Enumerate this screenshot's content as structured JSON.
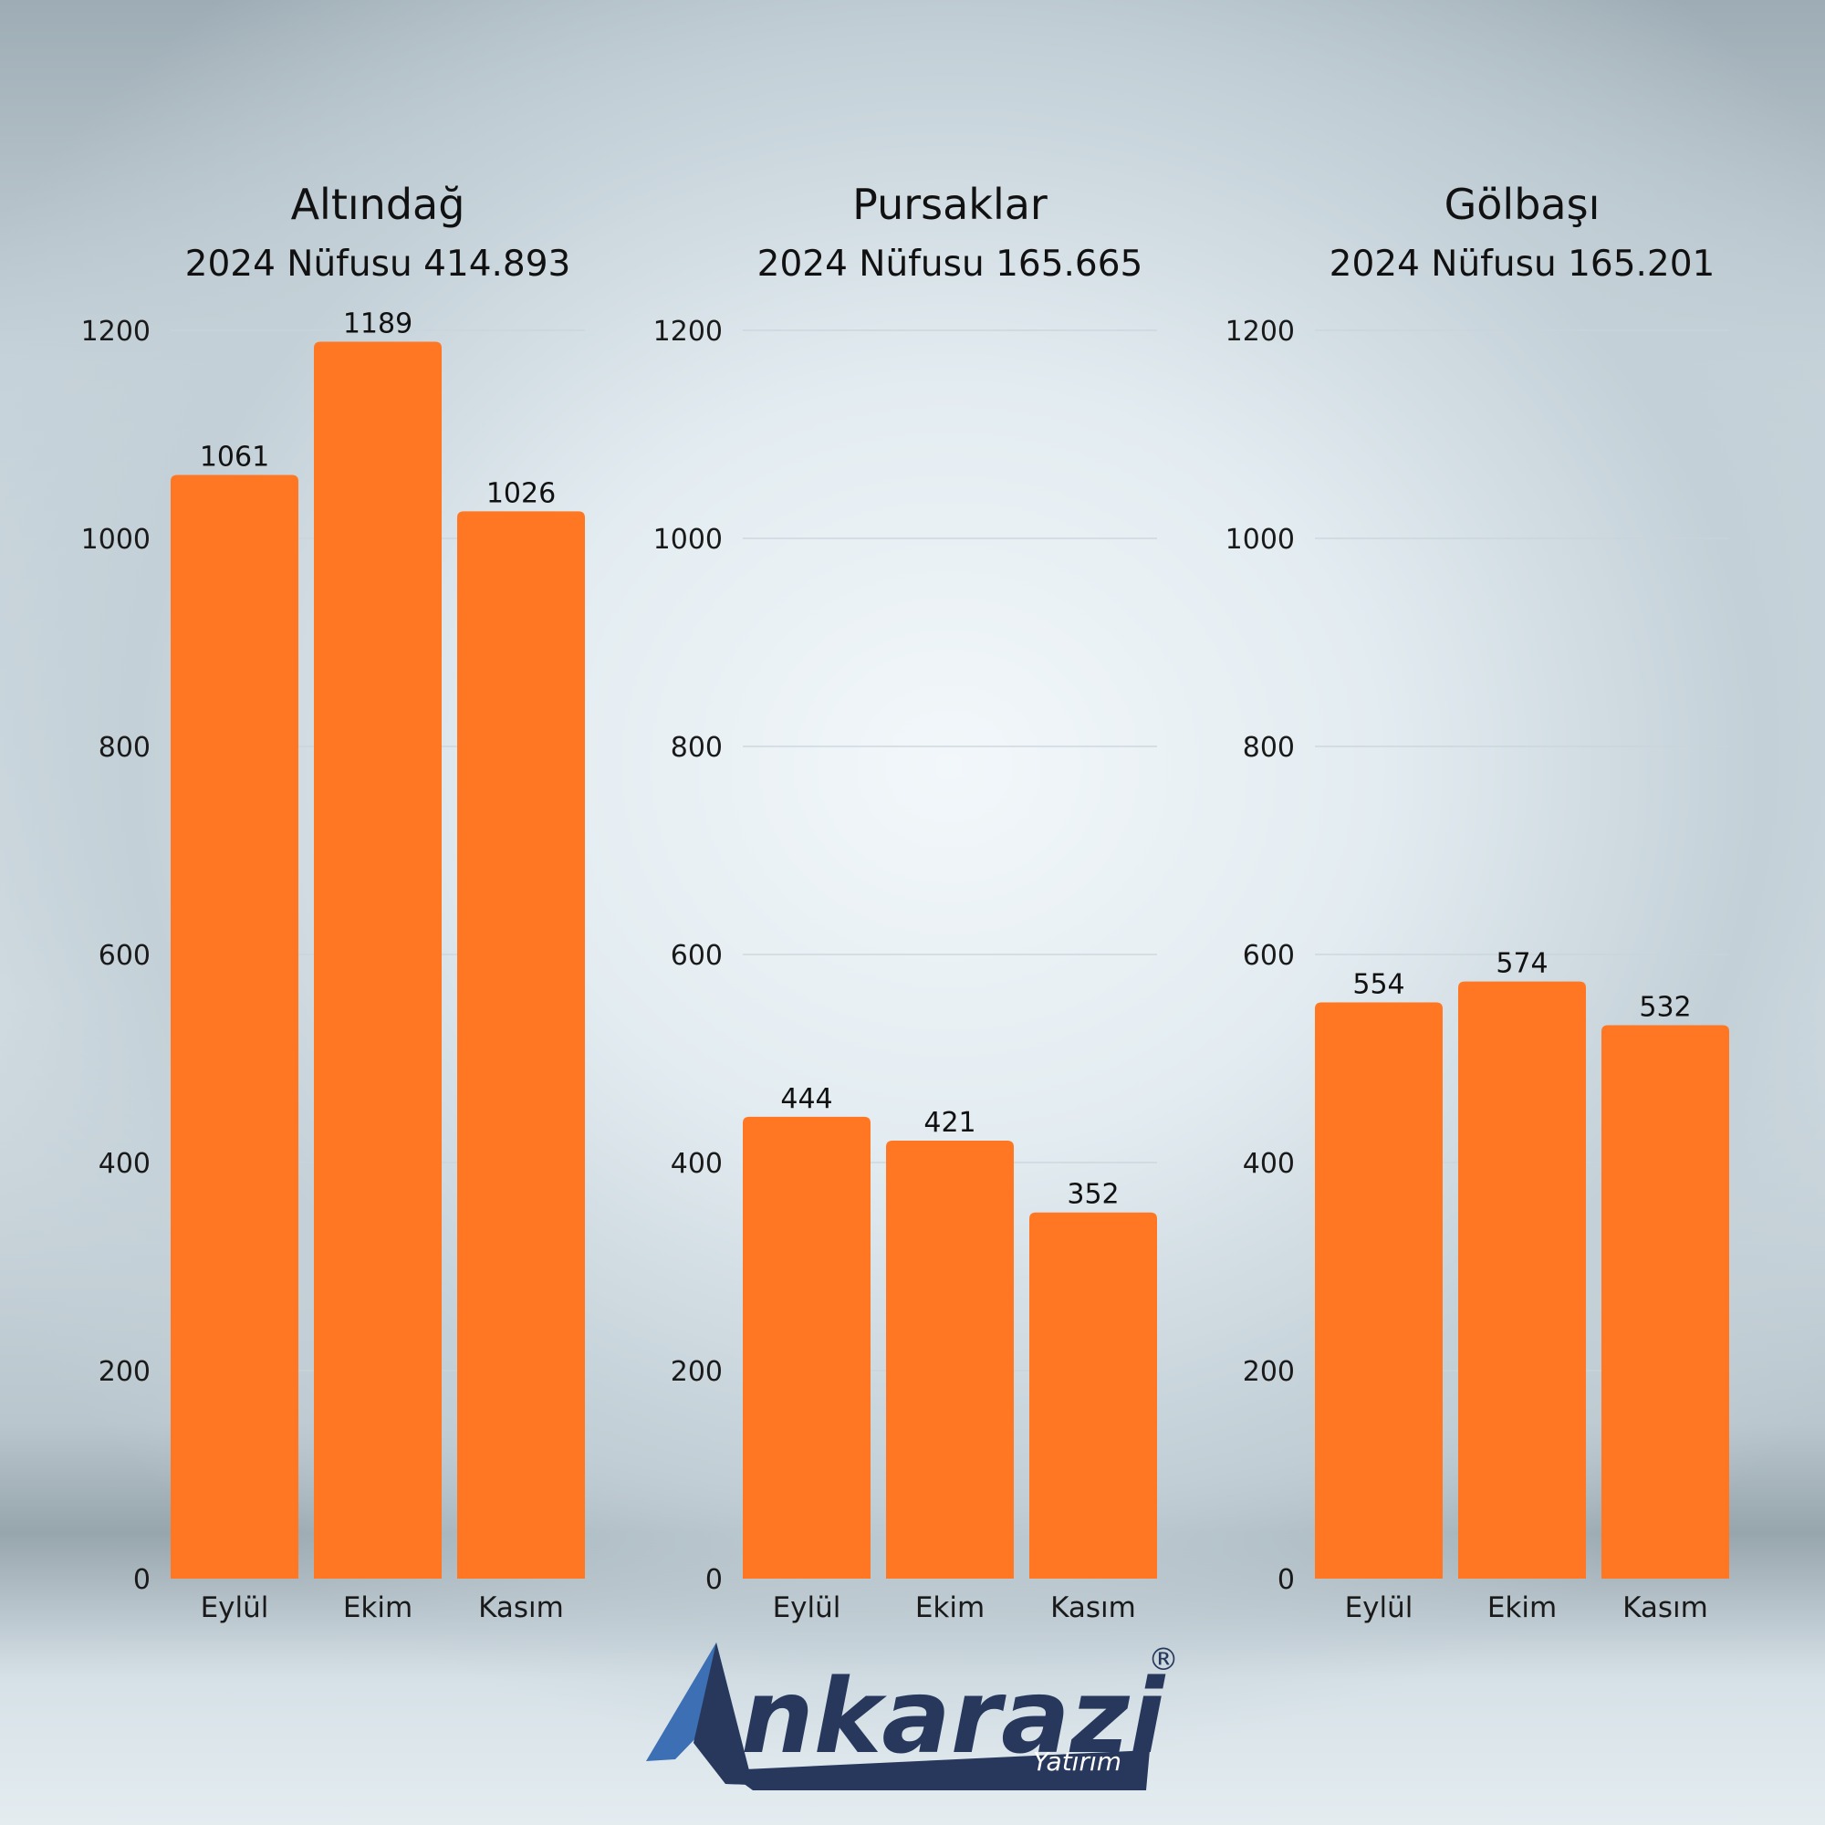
{
  "colors": {
    "bar": "#ff7722",
    "grid": "#c9d3da",
    "text": "#111111",
    "logo_navy": "#27385c",
    "logo_blue": "#3c6fb3"
  },
  "chart_data": [
    {
      "type": "bar",
      "title": "Altındağ",
      "subtitle": "2024 Nüfusu 414.893",
      "categories": [
        "Eylül",
        "Ekim",
        "Kasım"
      ],
      "values": [
        1061,
        1189,
        1026
      ],
      "ylim": [
        0,
        1200
      ],
      "yticks": [
        0,
        200,
        400,
        600,
        800,
        1000,
        1200
      ],
      "grid": true
    },
    {
      "type": "bar",
      "title": "Pursaklar",
      "subtitle": "2024 Nüfusu 165.665",
      "categories": [
        "Eylül",
        "Ekim",
        "Kasım"
      ],
      "values": [
        444,
        421,
        352
      ],
      "ylim": [
        0,
        1200
      ],
      "yticks": [
        0,
        200,
        400,
        600,
        800,
        1000,
        1200
      ],
      "grid": true
    },
    {
      "type": "bar",
      "title": "Gölbaşı",
      "subtitle": "2024 Nüfusu 165.201",
      "categories": [
        "Eylül",
        "Ekim",
        "Kasım"
      ],
      "values": [
        554,
        574,
        532
      ],
      "ylim": [
        0,
        1200
      ],
      "yticks": [
        0,
        200,
        400,
        600,
        800,
        1000,
        1200
      ],
      "grid": true
    }
  ],
  "logo": {
    "brand": "nkarazi",
    "sub": "Yatırım",
    "mark": "®"
  }
}
